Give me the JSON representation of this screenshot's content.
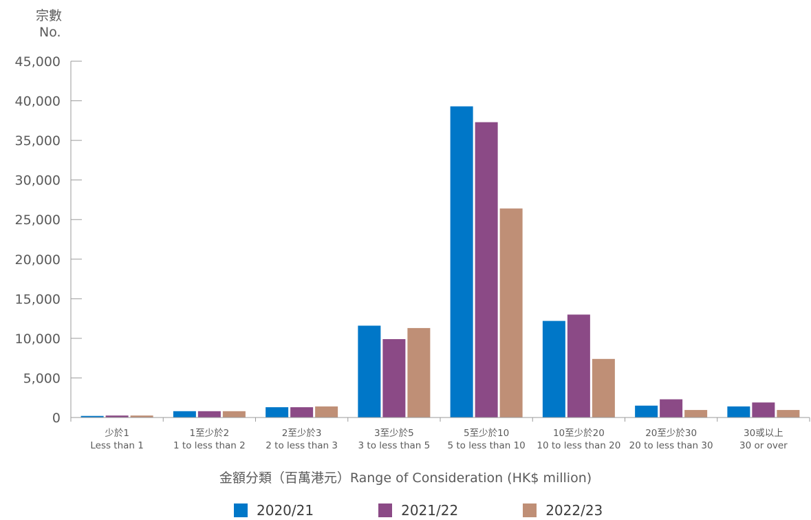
{
  "chart_data": {
    "type": "bar",
    "y_axis_label_zh": "宗數",
    "y_axis_label_en": "No.",
    "x_axis_title": "金額分類（百萬港元）Range of Consideration (HK$ million)",
    "ylim": [
      0,
      45000
    ],
    "yticks": [
      0,
      5000,
      10000,
      15000,
      20000,
      25000,
      30000,
      35000,
      40000,
      45000
    ],
    "ytick_labels": [
      "0",
      "5,000",
      "10,000",
      "15,000",
      "20,000",
      "25,000",
      "30,000",
      "35,000",
      "40,000",
      "45,000"
    ],
    "categories": [
      {
        "zh": "少於1",
        "en": "Less than 1"
      },
      {
        "zh": "1至少於2",
        "en": "1 to less than 2"
      },
      {
        "zh": "2至少於3",
        "en": "2 to less than 3"
      },
      {
        "zh": "3至少於5",
        "en": "3 to less than 5"
      },
      {
        "zh": "5至少於10",
        "en": "5 to less than 10"
      },
      {
        "zh": "10至少於20",
        "en": "10 to less than 20"
      },
      {
        "zh": "20至少於30",
        "en": "20 to less than 30"
      },
      {
        "zh": "30或以上",
        "en": "30 or over"
      }
    ],
    "series": [
      {
        "name": "2020/21",
        "color": "#0077c8",
        "values": [
          200,
          800,
          1300,
          11600,
          39300,
          12200,
          1500,
          1400
        ]
      },
      {
        "name": "2021/22",
        "color": "#8b4a86",
        "values": [
          250,
          800,
          1300,
          9900,
          37300,
          13000,
          2300,
          1900
        ]
      },
      {
        "name": "2022/23",
        "color": "#bf8f76",
        "values": [
          250,
          800,
          1400,
          11300,
          26400,
          7400,
          950,
          950
        ]
      }
    ],
    "grid": false,
    "legend_position": "bottom"
  }
}
